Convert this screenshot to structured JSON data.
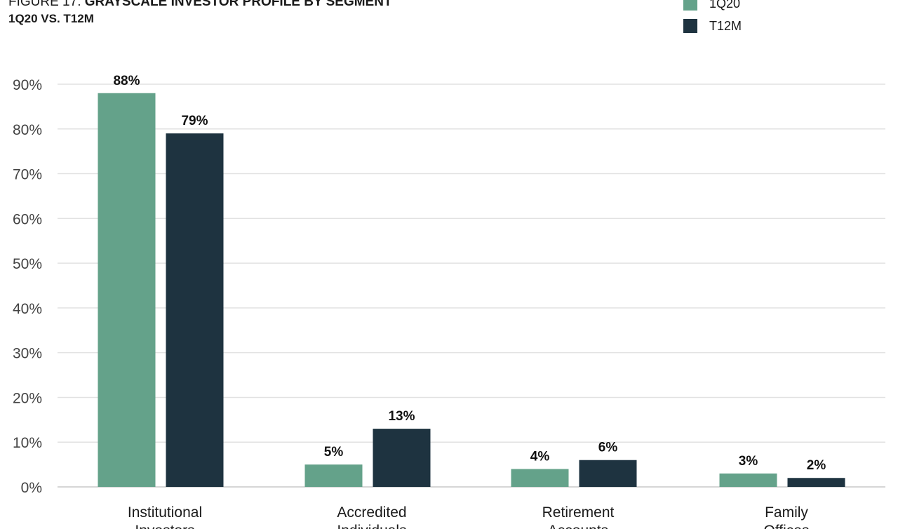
{
  "figure": {
    "prefix": "FIGURE 17:",
    "title": "GRAYSCALE INVESTOR PROFILE BY SEGMENT",
    "subtitle": "1Q20 VS. T12M"
  },
  "legend": [
    {
      "label": "1Q20",
      "color": "#64a28a"
    },
    {
      "label": "T12M",
      "color": "#1e3340"
    }
  ],
  "chart_data": {
    "type": "bar",
    "title": "GRAYSCALE INVESTOR PROFILE BY SEGMENT",
    "subtitle": "1Q20 VS. T12M",
    "categories": [
      [
        "Institutional",
        "Investors"
      ],
      [
        "Accredited",
        "Individuals"
      ],
      [
        "Retirement",
        "Accounts"
      ],
      [
        "Family",
        "Offices"
      ]
    ],
    "series": [
      {
        "name": "1Q20",
        "color": "#64a28a",
        "values": [
          88,
          5,
          4,
          3
        ],
        "labels": [
          "88%",
          "5%",
          "4%",
          "3%"
        ]
      },
      {
        "name": "T12M",
        "color": "#1e3340",
        "values": [
          79,
          13,
          6,
          2
        ],
        "labels": [
          "79%",
          "13%",
          "6%",
          "2%"
        ]
      }
    ],
    "y_ticks": [
      "0%",
      "10%",
      "20%",
      "30%",
      "40%",
      "50%",
      "60%",
      "70%",
      "80%",
      "90%"
    ],
    "ylim": [
      0,
      90
    ],
    "grid": true,
    "legend_position": "top-right"
  }
}
